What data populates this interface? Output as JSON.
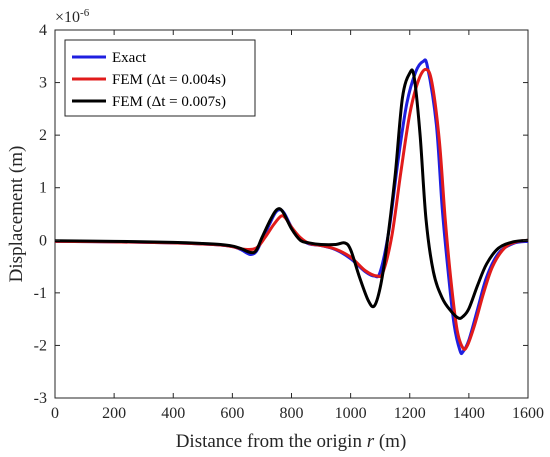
{
  "chart_data": {
    "type": "line",
    "xlabel": "Distance from the origin",
    "xlabel_var": "r",
    "xlabel_unit": "(m)",
    "ylabel": "Displacement (m)",
    "y_exponent_base": "×10",
    "y_exponent_power": "-6",
    "xlim": [
      0,
      1600
    ],
    "ylim": [
      -3,
      4
    ],
    "xticks": [
      "0",
      "200",
      "400",
      "600",
      "800",
      "1000",
      "1200",
      "1400",
      "1600"
    ],
    "yticks": [
      "-3",
      "-2",
      "-1",
      "0",
      "1",
      "2",
      "3",
      "4"
    ],
    "grid": false,
    "legend_position": "top-left",
    "series": [
      {
        "name": "Exact",
        "color": "#1f1fe0",
        "points": [
          [
            0,
            -0.02
          ],
          [
            200,
            -0.03
          ],
          [
            400,
            -0.05
          ],
          [
            500,
            -0.07
          ],
          [
            560,
            -0.09
          ],
          [
            600,
            -0.12
          ],
          [
            630,
            -0.18
          ],
          [
            660,
            -0.27
          ],
          [
            680,
            -0.22
          ],
          [
            700,
            0.0
          ],
          [
            725,
            0.3
          ],
          [
            745,
            0.52
          ],
          [
            760,
            0.58
          ],
          [
            775,
            0.52
          ],
          [
            800,
            0.25
          ],
          [
            830,
            0.03
          ],
          [
            860,
            -0.07
          ],
          [
            900,
            -0.1
          ],
          [
            950,
            -0.18
          ],
          [
            1000,
            -0.35
          ],
          [
            1050,
            -0.6
          ],
          [
            1080,
            -0.68
          ],
          [
            1100,
            -0.6
          ],
          [
            1130,
            0.2
          ],
          [
            1160,
            1.5
          ],
          [
            1190,
            2.6
          ],
          [
            1220,
            3.2
          ],
          [
            1245,
            3.4
          ],
          [
            1260,
            3.3
          ],
          [
            1290,
            2.2
          ],
          [
            1310,
            0.6
          ],
          [
            1330,
            -0.6
          ],
          [
            1350,
            -1.6
          ],
          [
            1370,
            -2.1
          ],
          [
            1380,
            -2.12
          ],
          [
            1400,
            -1.9
          ],
          [
            1430,
            -1.3
          ],
          [
            1460,
            -0.7
          ],
          [
            1500,
            -0.25
          ],
          [
            1550,
            -0.06
          ],
          [
            1600,
            -0.02
          ]
        ]
      },
      {
        "name": "FEM (Δt = 0.004s)",
        "color": "#e11b1b",
        "points": [
          [
            0,
            -0.02
          ],
          [
            200,
            -0.03
          ],
          [
            400,
            -0.05
          ],
          [
            500,
            -0.07
          ],
          [
            560,
            -0.09
          ],
          [
            600,
            -0.12
          ],
          [
            640,
            -0.17
          ],
          [
            680,
            -0.15
          ],
          [
            710,
            0.05
          ],
          [
            740,
            0.3
          ],
          [
            765,
            0.46
          ],
          [
            780,
            0.42
          ],
          [
            800,
            0.25
          ],
          [
            830,
            0.05
          ],
          [
            860,
            -0.06
          ],
          [
            900,
            -0.1
          ],
          [
            950,
            -0.17
          ],
          [
            1000,
            -0.32
          ],
          [
            1050,
            -0.58
          ],
          [
            1090,
            -0.68
          ],
          [
            1110,
            -0.6
          ],
          [
            1140,
            0.1
          ],
          [
            1170,
            1.3
          ],
          [
            1200,
            2.4
          ],
          [
            1230,
            3.05
          ],
          [
            1255,
            3.25
          ],
          [
            1275,
            3.0
          ],
          [
            1300,
            1.9
          ],
          [
            1320,
            0.4
          ],
          [
            1340,
            -0.8
          ],
          [
            1360,
            -1.7
          ],
          [
            1380,
            -2.05
          ],
          [
            1395,
            -2.0
          ],
          [
            1420,
            -1.6
          ],
          [
            1450,
            -1.0
          ],
          [
            1480,
            -0.5
          ],
          [
            1520,
            -0.15
          ],
          [
            1560,
            -0.03
          ],
          [
            1600,
            0.0
          ]
        ]
      },
      {
        "name": "FEM (Δt = 0.007s)",
        "color": "#000000",
        "points": [
          [
            0,
            -0.01
          ],
          [
            200,
            -0.02
          ],
          [
            400,
            -0.04
          ],
          [
            500,
            -0.06
          ],
          [
            560,
            -0.08
          ],
          [
            600,
            -0.11
          ],
          [
            630,
            -0.16
          ],
          [
            660,
            -0.23
          ],
          [
            680,
            -0.2
          ],
          [
            700,
            0.05
          ],
          [
            725,
            0.35
          ],
          [
            745,
            0.55
          ],
          [
            760,
            0.6
          ],
          [
            775,
            0.5
          ],
          [
            800,
            0.22
          ],
          [
            830,
            0.0
          ],
          [
            860,
            -0.05
          ],
          [
            900,
            -0.08
          ],
          [
            950,
            -0.08
          ],
          [
            980,
            -0.05
          ],
          [
            1000,
            -0.18
          ],
          [
            1030,
            -0.7
          ],
          [
            1060,
            -1.15
          ],
          [
            1080,
            -1.25
          ],
          [
            1100,
            -0.9
          ],
          [
            1120,
            -0.2
          ],
          [
            1150,
            1.2
          ],
          [
            1175,
            2.7
          ],
          [
            1200,
            3.18
          ],
          [
            1215,
            3.1
          ],
          [
            1235,
            2.0
          ],
          [
            1255,
            0.4
          ],
          [
            1280,
            -0.6
          ],
          [
            1310,
            -1.1
          ],
          [
            1340,
            -1.35
          ],
          [
            1365,
            -1.48
          ],
          [
            1380,
            -1.45
          ],
          [
            1400,
            -1.3
          ],
          [
            1430,
            -0.85
          ],
          [
            1460,
            -0.45
          ],
          [
            1500,
            -0.15
          ],
          [
            1550,
            -0.03
          ],
          [
            1600,
            0.0
          ]
        ]
      }
    ]
  }
}
